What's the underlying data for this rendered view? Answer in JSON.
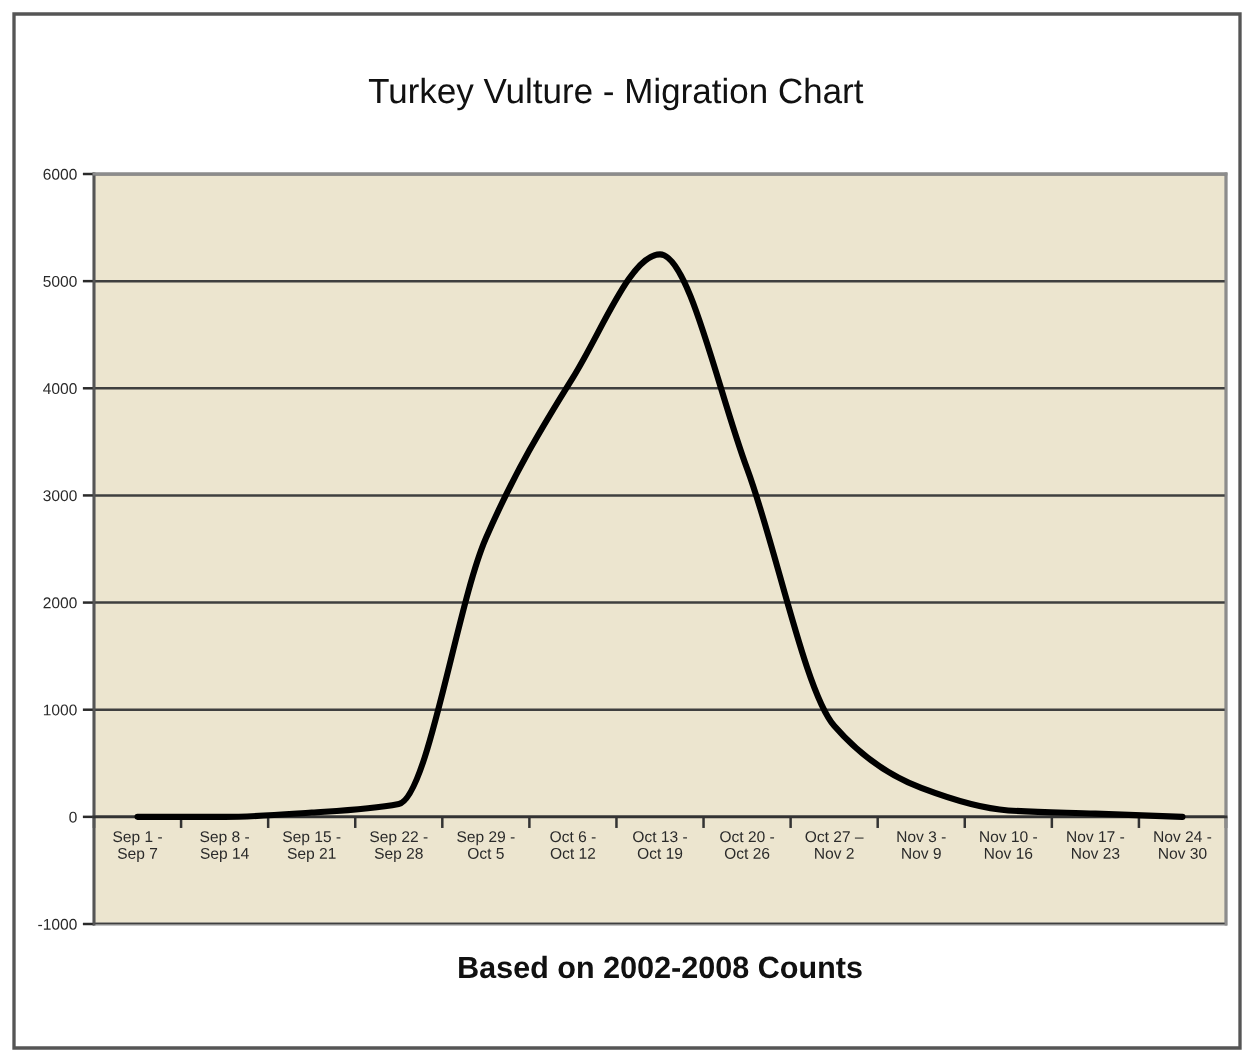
{
  "chart_data": {
    "type": "line",
    "title": "Turkey Vulture - Migration Chart",
    "xlabel": "Based on 2002-2008 Counts",
    "categories": [
      "Sep 1 -\nSep 7",
      "Sep 8 -\nSep 14",
      "Sep 15 -\nSep 21",
      "Sep 22 -\nSep 28",
      "Sep 29 -\nOct 5",
      "Oct 6 -\nOct 12",
      "Oct 13 -\nOct 19",
      "Oct 20 -\nOct 26",
      "Oct 27 –\nNov 2",
      "Nov 3 -\nNov 9",
      "Nov 10 -\nNov 16",
      "Nov 17 -\nNov 23",
      "Nov 24 -\nNov 30"
    ],
    "series": [
      {
        "color": "#000000",
        "values": [
          0,
          0,
          40,
          120,
          2600,
          4100,
          5250,
          3250,
          850,
          270,
          60,
          30,
          0
        ]
      }
    ],
    "ylim": [
      -1000,
      6000
    ],
    "yticks": [
      -1000,
      0,
      1000,
      2000,
      3000,
      4000,
      5000,
      6000
    ],
    "grid": "y"
  }
}
